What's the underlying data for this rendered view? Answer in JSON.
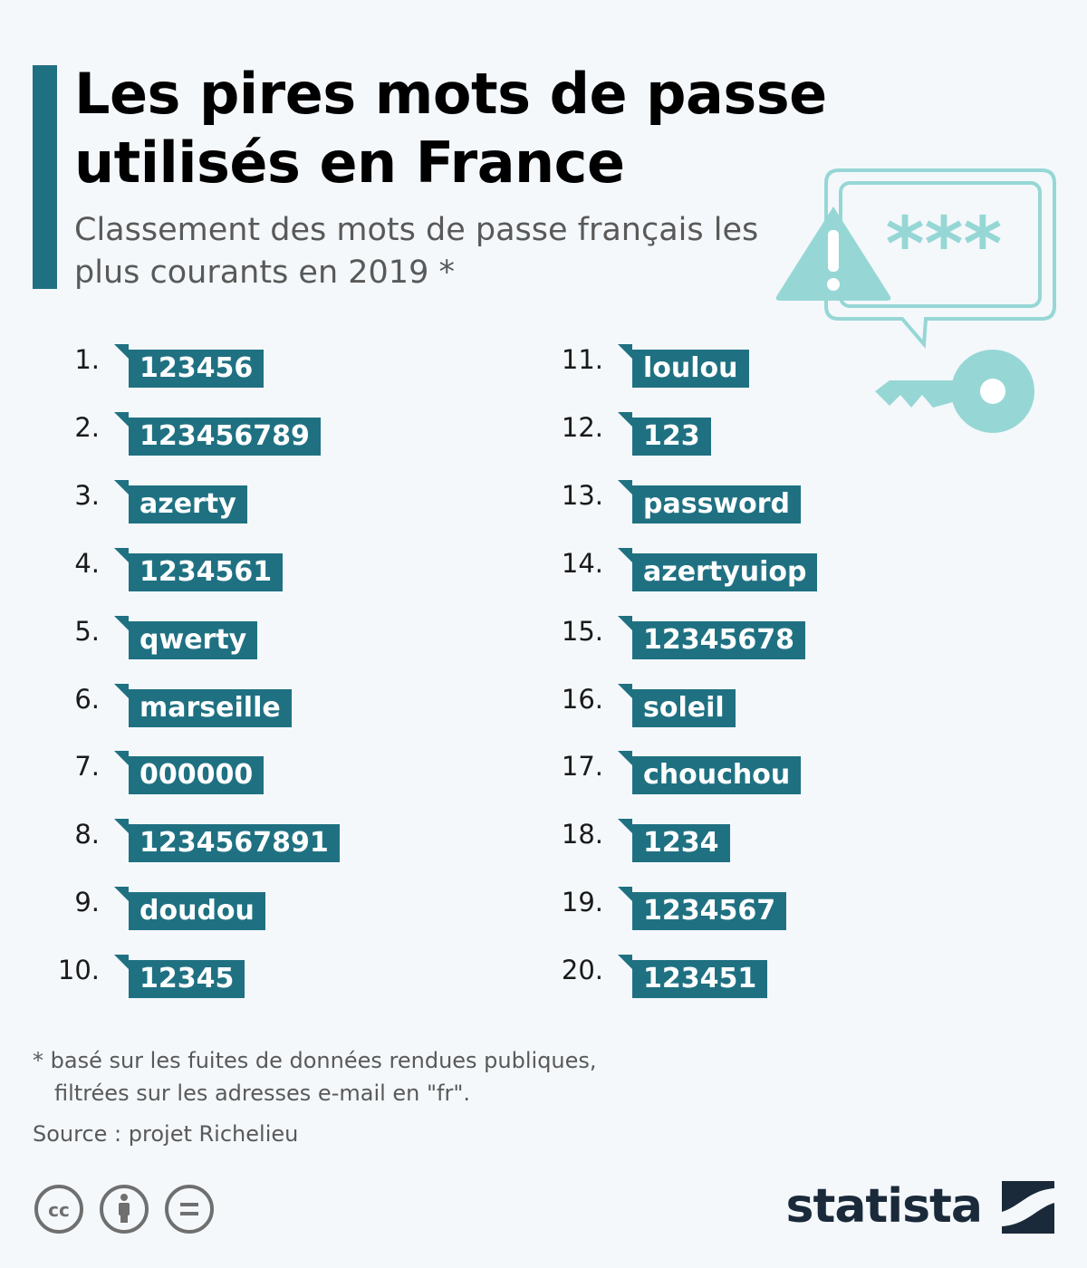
{
  "title": "Les pires mots de passe utilisés en France",
  "subtitle": "Classement des mots de passe français les plus courants en 2019 *",
  "illustration": {
    "masked_text": "***",
    "icons": [
      "warning-icon",
      "chat-bubble-icon",
      "key-icon"
    ]
  },
  "ranking": [
    {
      "rank": "1.",
      "password": "123456"
    },
    {
      "rank": "2.",
      "password": "123456789"
    },
    {
      "rank": "3.",
      "password": "azerty"
    },
    {
      "rank": "4.",
      "password": "1234561"
    },
    {
      "rank": "5.",
      "password": "qwerty"
    },
    {
      "rank": "6.",
      "password": "marseille"
    },
    {
      "rank": "7.",
      "password": "000000"
    },
    {
      "rank": "8.",
      "password": "1234567891"
    },
    {
      "rank": "9.",
      "password": "doudou"
    },
    {
      "rank": "10.",
      "password": "12345"
    },
    {
      "rank": "11.",
      "password": "loulou"
    },
    {
      "rank": "12.",
      "password": "123"
    },
    {
      "rank": "13.",
      "password": "password"
    },
    {
      "rank": "14.",
      "password": "azertyuiop"
    },
    {
      "rank": "15.",
      "password": "12345678"
    },
    {
      "rank": "16.",
      "password": "soleil"
    },
    {
      "rank": "17.",
      "password": "chouchou"
    },
    {
      "rank": "18.",
      "password": "1234"
    },
    {
      "rank": "19.",
      "password": "1234567"
    },
    {
      "rank": "20.",
      "password": "123451"
    }
  ],
  "footnote": {
    "line1": "* basé sur les fuites de données rendues publiques,",
    "line2": "filtrées sur les adresses e-mail en \"fr\"."
  },
  "source": "Source : projet Richelieu",
  "license_icons": [
    "cc-icon",
    "attribution-icon",
    "no-derivatives-icon"
  ],
  "brand": "statista",
  "colors": {
    "accent": "#1f7182",
    "illustration": "#96d7d5",
    "background": "#f4f8fb",
    "brand": "#1a2a3a"
  }
}
